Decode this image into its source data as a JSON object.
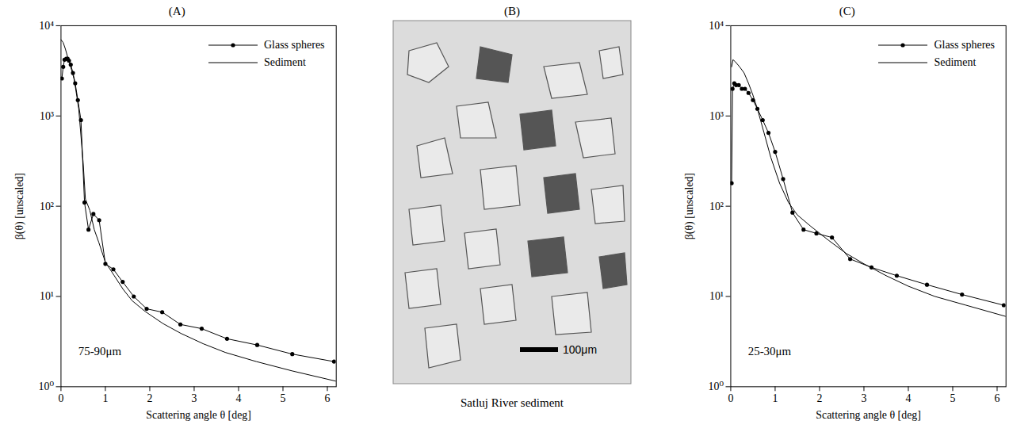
{
  "chart_data": [
    {
      "type": "line",
      "title": "(A)",
      "xlabel": "Scattering angle θ [deg]",
      "ylabel": "β(θ) [unscaled]",
      "annotation": "75-90μm",
      "log": "y",
      "grid": false,
      "legend": "top-right",
      "xlim": [
        0,
        6.2
      ],
      "xticks": [
        0,
        1,
        2,
        3,
        4,
        5,
        6
      ],
      "ylim": [
        1,
        10000
      ],
      "yticks": [
        {
          "value": 1,
          "label": "10⁰"
        },
        {
          "value": 10,
          "label": "10¹"
        },
        {
          "value": 100,
          "label": "10²"
        },
        {
          "value": 1000,
          "label": "10³"
        },
        {
          "value": 10000,
          "label": "10⁴"
        }
      ],
      "series": [
        {
          "name": "Glass spheres",
          "color": "#000000",
          "marker": "circle",
          "x": [
            0.02,
            0.05,
            0.08,
            0.12,
            0.15,
            0.18,
            0.22,
            0.27,
            0.32,
            0.38,
            0.45,
            0.53,
            0.62,
            0.73,
            0.86,
            1.0,
            1.18,
            1.39,
            1.64,
            1.93,
            2.28,
            2.69,
            3.17,
            3.74,
            4.42,
            5.21,
            6.15
          ],
          "values": [
            2600,
            3500,
            4200,
            4300,
            4300,
            4100,
            3700,
            3000,
            2300,
            1500,
            900,
            110,
            55,
            82,
            70,
            23,
            20,
            14.5,
            10,
            7.3,
            6.7,
            4.9,
            4.4,
            3.4,
            2.9,
            2.3,
            1.9
          ]
        },
        {
          "name": "Sediment",
          "color": "#000000",
          "marker": "none",
          "x": [
            0.0,
            0.05,
            0.1,
            0.15,
            0.2,
            0.3,
            0.4,
            0.5,
            0.55,
            0.65,
            0.75,
            0.85,
            1.0,
            1.2,
            1.4,
            1.6,
            1.9,
            2.3,
            2.7,
            3.2,
            3.7,
            4.4,
            5.2,
            6.2
          ],
          "values": [
            7000,
            6500,
            5500,
            4500,
            3800,
            2500,
            1200,
            300,
            120,
            90,
            55,
            40,
            24,
            17,
            12,
            9,
            6.8,
            5,
            3.9,
            3.0,
            2.4,
            1.9,
            1.5,
            1.15
          ]
        }
      ]
    },
    {
      "type": "image",
      "title": "(B)",
      "caption": "Satluj River sediment",
      "scale_bar": "100μm"
    },
    {
      "type": "line",
      "title": "(C)",
      "xlabel": "Scattering angle θ [deg]",
      "ylabel": "β(θ) [unscaled]",
      "annotation": "25-30μm",
      "log": "y",
      "grid": false,
      "legend": "top-right",
      "xlim": [
        0,
        6.2
      ],
      "xticks": [
        0,
        1,
        2,
        3,
        4,
        5,
        6
      ],
      "ylim": [
        1,
        10000
      ],
      "yticks": [
        {
          "value": 1,
          "label": "10⁰"
        },
        {
          "value": 10,
          "label": "10¹"
        },
        {
          "value": 100,
          "label": "10²"
        },
        {
          "value": 1000,
          "label": "10³"
        },
        {
          "value": 10000,
          "label": "10⁴"
        }
      ],
      "series": [
        {
          "name": "Glass spheres",
          "color": "#000000",
          "marker": "circle",
          "x": [
            0.02,
            0.04,
            0.08,
            0.12,
            0.18,
            0.25,
            0.32,
            0.4,
            0.5,
            0.6,
            0.72,
            0.85,
            1.0,
            1.18,
            1.39,
            1.64,
            1.93,
            2.28,
            2.69,
            3.17,
            3.74,
            4.42,
            5.21,
            6.15
          ],
          "values": [
            180,
            2000,
            2300,
            2200,
            2200,
            2000,
            2000,
            1800,
            1500,
            1200,
            900,
            650,
            400,
            200,
            85,
            55,
            50,
            45,
            26,
            21,
            17,
            13.5,
            10.5,
            8
          ]
        },
        {
          "name": "Sediment",
          "color": "#000000",
          "marker": "none",
          "x": [
            0.02,
            0.05,
            0.1,
            0.2,
            0.3,
            0.4,
            0.5,
            0.6,
            0.75,
            0.9,
            1.1,
            1.3,
            1.5,
            1.8,
            2.2,
            2.6,
            3.0,
            3.5,
            4.0,
            4.6,
            5.3,
            6.2
          ],
          "values": [
            3500,
            4200,
            4000,
            3500,
            3000,
            2300,
            1700,
            1200,
            650,
            350,
            180,
            110,
            80,
            60,
            42,
            30,
            23,
            17,
            13,
            10,
            8,
            6
          ]
        }
      ]
    }
  ]
}
